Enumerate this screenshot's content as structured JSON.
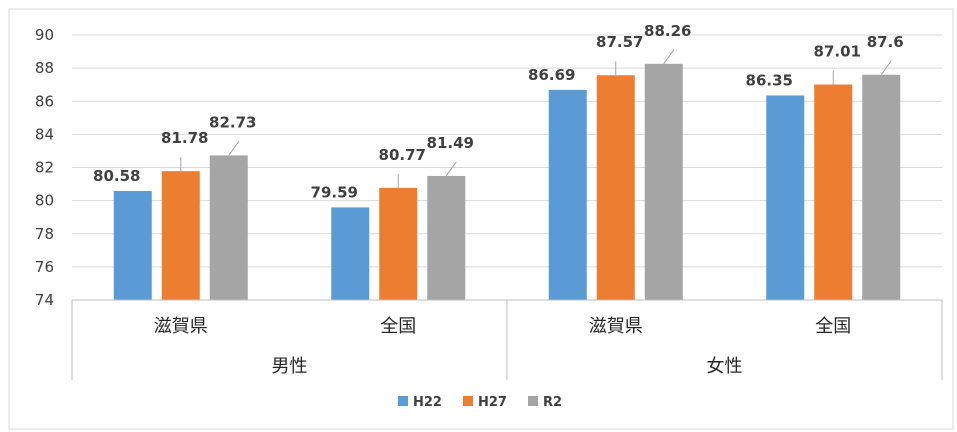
{
  "chart_data": {
    "type": "bar",
    "ylim": [
      74,
      90
    ],
    "yticks": [
      74,
      76,
      78,
      80,
      82,
      84,
      86,
      88,
      90
    ],
    "groups": [
      "男性",
      "女性"
    ],
    "categories": [
      "滋賀県",
      "全国",
      "滋賀県",
      "全国"
    ],
    "category_groups": [
      0,
      0,
      1,
      1
    ],
    "series": [
      {
        "name": "H22",
        "color": "#5B9BD5",
        "values": [
          80.58,
          79.59,
          86.69,
          86.35
        ]
      },
      {
        "name": "H27",
        "color": "#ED7D31",
        "values": [
          81.78,
          80.77,
          87.57,
          87.01
        ]
      },
      {
        "name": "R2",
        "color": "#A5A5A5",
        "values": [
          82.73,
          81.49,
          88.26,
          87.6
        ]
      }
    ],
    "legend_position": "bottom",
    "grid": true
  }
}
